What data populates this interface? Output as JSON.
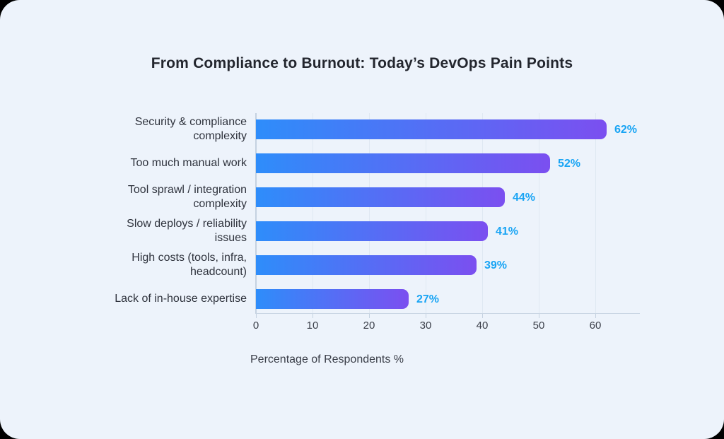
{
  "page": {
    "card_background": "#edf3fb",
    "outside_background": "#000000"
  },
  "chart_data": {
    "type": "bar",
    "orientation": "horizontal",
    "title": "From Compliance to Burnout: Today’s DevOps Pain Points",
    "xlabel": "Percentage of Respondents %",
    "categories": [
      "Security & compliance\ncomplexity",
      "Too much manual work",
      "Tool sprawl / integration\ncomplexity",
      "Slow deploys / reliability\nissues",
      "High costs (tools, infra,\nheadcount)",
      "Lack of in-house expertise"
    ],
    "values": [
      62,
      52,
      44,
      41,
      39,
      27
    ],
    "value_labels": [
      "62%",
      "52%",
      "44%",
      "41%",
      "39%",
      "27%"
    ],
    "x_ticks": [
      0,
      10,
      20,
      30,
      40,
      50,
      60
    ],
    "xlim": [
      0,
      66
    ],
    "grid": "vertical",
    "legend": "none",
    "colors": {
      "bar_gradient_start": "#2e8dfa",
      "bar_gradient_end": "#7b4ff0",
      "value_label": "#18a4f4",
      "category_text": "#2f333d",
      "tick_text": "#3a3e48",
      "gridline": "#dfe8f2",
      "axis_line": "#c5d2e1",
      "title_text": "#23262e"
    }
  }
}
